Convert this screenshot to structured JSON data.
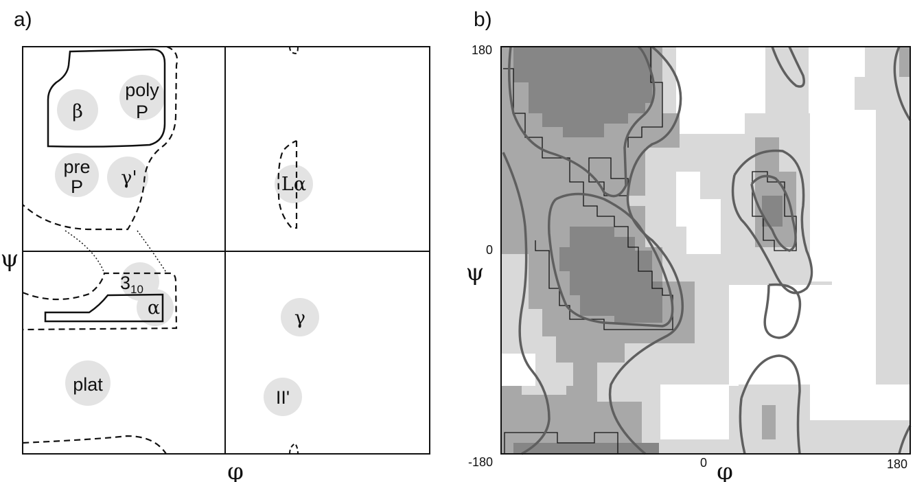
{
  "panel_a": {
    "label": "a)",
    "x_axis_symbol": "φ",
    "y_axis_symbol": "ψ",
    "regions": {
      "beta": "β",
      "polyP_top": "poly",
      "polyP_bottom": "P",
      "preP_top": "pre",
      "preP_bottom": "P",
      "gamma_prime": "γ'",
      "L_alpha": "Lα",
      "three_ten_main": "3",
      "three_ten_sub": "10",
      "alpha": "α",
      "gamma": "γ",
      "plat": "plat",
      "II_prime": "II'"
    }
  },
  "panel_b": {
    "label": "b)",
    "x_axis_symbol": "φ",
    "y_axis_symbol": "ψ",
    "x_ticks": {
      "min": "-180",
      "mid": "0",
      "max": "180"
    },
    "y_ticks": {
      "max": "180",
      "mid": "0",
      "min": "-180"
    },
    "shade_colors": {
      "light": "#d9d9d9",
      "mid": "#a8a8a8",
      "dark": "#868686",
      "contour": "#5f5f5f"
    }
  }
}
